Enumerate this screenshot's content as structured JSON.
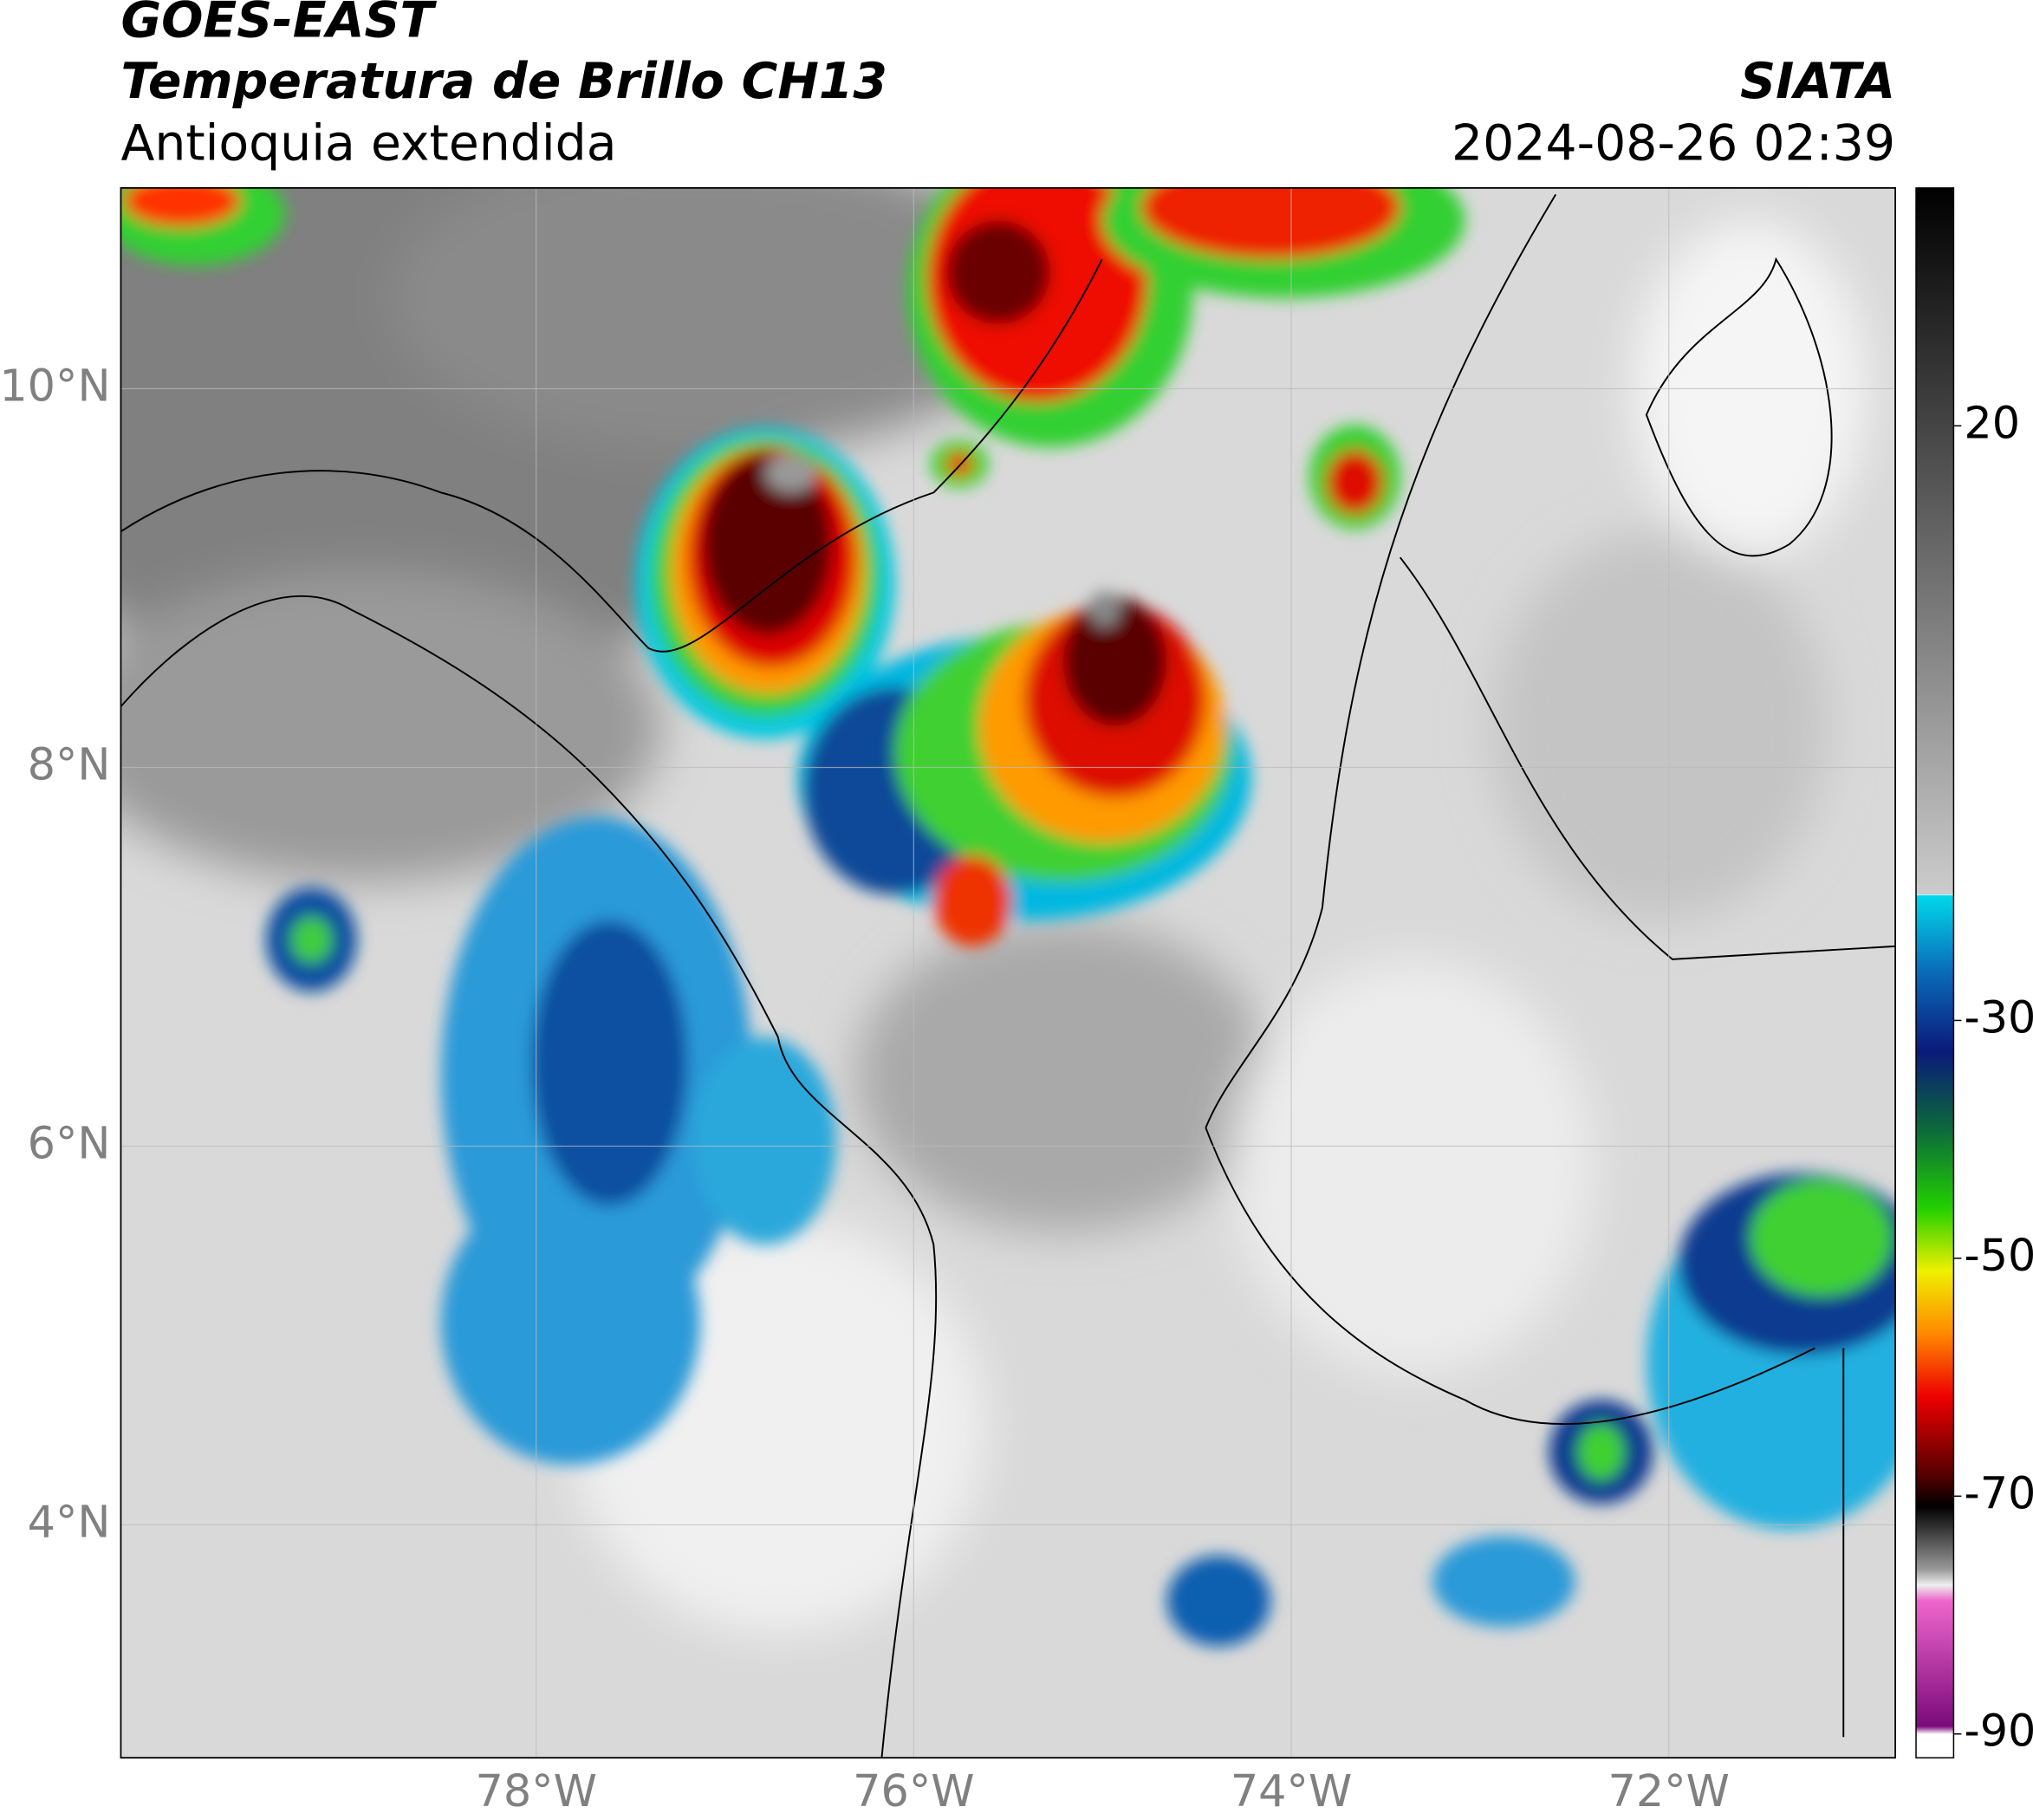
{
  "header": {
    "satellite": "GOES-EAST",
    "product": "Temperatura de Brillo CH13",
    "region": "Antioquia extendida",
    "source": "SIATA",
    "datetime": "2024-08-26 02:39"
  },
  "map": {
    "lon_range": [
      -80.2,
      -70.8
    ],
    "lat_range": [
      2.77,
      11.06
    ],
    "lat_ticks": [
      {
        "value": 10,
        "label": "10°N"
      },
      {
        "value": 8,
        "label": "8°N"
      },
      {
        "value": 6,
        "label": "6°N"
      },
      {
        "value": 4,
        "label": "4°N"
      }
    ],
    "lon_ticks": [
      {
        "value": -78,
        "label": "78°W"
      },
      {
        "value": -76,
        "label": "76°W"
      },
      {
        "value": -74,
        "label": "74°W"
      },
      {
        "value": -72,
        "label": "72°W"
      }
    ]
  },
  "colorbar": {
    "range": [
      -92,
      40
    ],
    "ticks": [
      20,
      -30,
      -50,
      -70,
      -90
    ]
  }
}
